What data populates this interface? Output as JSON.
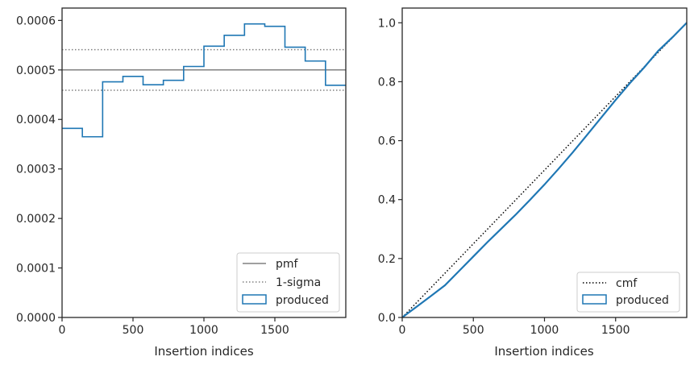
{
  "colors": {
    "produced": "#1f77b4",
    "pmf": "#808080",
    "sigma": "#808080",
    "cmf": "#000000",
    "axes": "#262626"
  },
  "chart_data": [
    {
      "type": "histogram-step",
      "xlabel": "Insertion indices",
      "ylabel": "",
      "xlim": [
        0,
        2000
      ],
      "ylim": [
        0,
        0.000625
      ],
      "x_ticks": [
        0,
        500,
        1000,
        1500
      ],
      "x_tick_labels": [
        "0",
        "500",
        "1000",
        "1500"
      ],
      "y_ticks": [
        0,
        0.0001,
        0.0002,
        0.0003,
        0.0004,
        0.0005,
        0.0006
      ],
      "y_tick_labels": [
        "0.0000",
        "0.0001",
        "0.0002",
        "0.0003",
        "0.0004",
        "0.0005",
        "0.0006"
      ],
      "bin_edges": [
        0,
        143,
        286,
        429,
        571,
        714,
        857,
        1000,
        1143,
        1286,
        1429,
        1571,
        1714,
        1857,
        2000
      ],
      "values": [
        0.000382,
        0.000365,
        0.000476,
        0.000487,
        0.00047,
        0.000479,
        0.000507,
        0.000548,
        0.00057,
        0.000593,
        0.000588,
        0.000546,
        0.000518,
        0.000469
      ],
      "pmf": 0.0005,
      "sigma_upper": 0.000541,
      "sigma_lower": 0.000459,
      "legend": {
        "position": "lower-right",
        "entries": [
          {
            "label": "pmf",
            "style": "solid-line",
            "color_key": "pmf"
          },
          {
            "label": "1-sigma",
            "style": "dotted-line",
            "color_key": "sigma"
          },
          {
            "label": "produced",
            "style": "patch",
            "color_key": "produced"
          }
        ]
      }
    },
    {
      "type": "line",
      "xlabel": "Insertion indices",
      "ylabel": "",
      "xlim": [
        0,
        2000
      ],
      "ylim": [
        0,
        1.05
      ],
      "x_ticks": [
        0,
        500,
        1000,
        1500
      ],
      "x_tick_labels": [
        "0",
        "500",
        "1000",
        "1500"
      ],
      "y_ticks": [
        0,
        0.2,
        0.4,
        0.6,
        0.8,
        1.0
      ],
      "y_tick_labels": [
        "0.0",
        "0.2",
        "0.4",
        "0.6",
        "0.8",
        "1.0"
      ],
      "cmf": {
        "x": [
          0,
          2000
        ],
        "y": [
          0,
          1.0
        ]
      },
      "produced": {
        "x": [
          0,
          100,
          200,
          300,
          400,
          500,
          600,
          700,
          800,
          900,
          1000,
          1100,
          1200,
          1300,
          1400,
          1500,
          1600,
          1700,
          1800,
          1900,
          2000
        ],
        "y": [
          0,
          0.036,
          0.072,
          0.109,
          0.158,
          0.207,
          0.256,
          0.303,
          0.35,
          0.4,
          0.451,
          0.505,
          0.561,
          0.62,
          0.679,
          0.738,
          0.795,
          0.848,
          0.905,
          0.951,
          1.0
        ]
      },
      "legend": {
        "position": "lower-right",
        "entries": [
          {
            "label": "cmf",
            "style": "dotted-line",
            "color_key": "cmf"
          },
          {
            "label": "produced",
            "style": "patch",
            "color_key": "produced"
          }
        ]
      }
    }
  ]
}
